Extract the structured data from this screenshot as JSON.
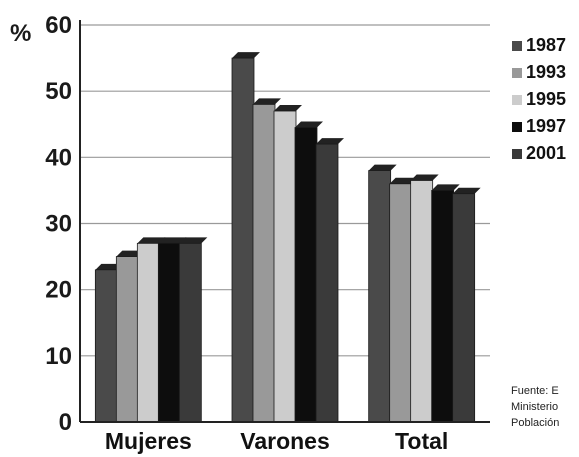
{
  "chart_data": {
    "type": "bar",
    "unit_label": "%",
    "categories": [
      "Mujeres",
      "Varones",
      "Total"
    ],
    "series": [
      {
        "name": "1987",
        "color": "#4a4a4a",
        "values": [
          23,
          55,
          38
        ]
      },
      {
        "name": "1993",
        "color": "#999999",
        "values": [
          25,
          48,
          36
        ]
      },
      {
        "name": "1995",
        "color": "#cccccc",
        "values": [
          27,
          47,
          36.5
        ]
      },
      {
        "name": "1997",
        "color": "#0d0d0d",
        "values": [
          27,
          44.5,
          35
        ]
      },
      {
        "name": "2001",
        "color": "#3a3a3a",
        "values": [
          27,
          42,
          34.5
        ]
      }
    ],
    "ylim": [
      0,
      60
    ],
    "yticks": [
      0,
      10,
      20,
      30,
      40,
      50,
      60
    ],
    "grid": true,
    "legend_position": "right",
    "xlabel": "",
    "ylabel": ""
  },
  "source_lines": [
    "Fuente: E",
    "Ministerio",
    "Población"
  ]
}
